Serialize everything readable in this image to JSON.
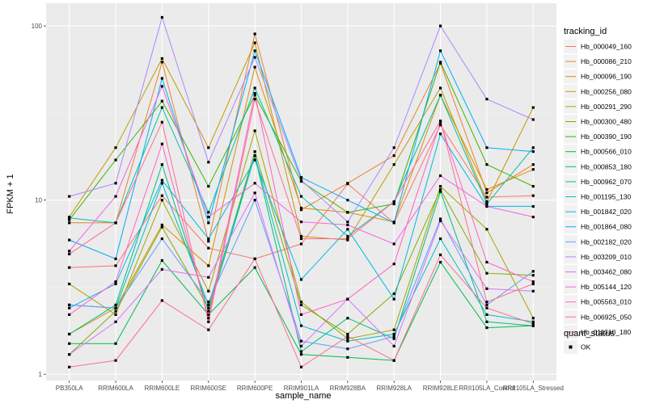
{
  "chart_data": {
    "type": "line",
    "title": "",
    "xlabel": "sample_name",
    "ylabel": "FPKM + 1",
    "yscale": "log10",
    "ylim": [
      0.92,
      135
    ],
    "yticks": [
      1,
      10,
      100
    ],
    "ytick_labels": [
      "1",
      "10",
      "100"
    ],
    "grid": true,
    "legend_position": "right",
    "categories": [
      "PB350LA",
      "RRIM600LA",
      "RRIM600LE",
      "RRIM600SE",
      "RRIM600PE",
      "RRIM901LA",
      "RRIM928BA",
      "RRIM928LA",
      "RRIM928LE",
      "RRII105LA_Control",
      "RRII105LA_Stressed"
    ],
    "legend_title": "tracking_id",
    "shape_legend_title": "quant_status",
    "shape_legend_items": [
      "OK"
    ],
    "series": [
      {
        "name": "Hb_000049_160",
        "color": "#F8766D",
        "values": [
          4.1,
          4.2,
          10.6,
          5.3,
          4.6,
          5.6,
          12.4,
          7.4,
          27.0,
          10.4,
          10.6
        ]
      },
      {
        "name": "Hb_000086_210",
        "color": "#EA8331",
        "values": [
          7.4,
          7.4,
          62.0,
          5.8,
          90.0,
          8.8,
          12.5,
          18.0,
          61.0,
          11.0,
          16.0
        ]
      },
      {
        "name": "Hb_000096_190",
        "color": "#D89000",
        "values": [
          1.7,
          2.4,
          7.2,
          4.2,
          58.0,
          9.0,
          8.5,
          7.5,
          40.0,
          11.5,
          15.0
        ]
      },
      {
        "name": "Hb_000256_080",
        "color": "#C09B00",
        "values": [
          8.0,
          20.0,
          65.0,
          20.0,
          80.0,
          6.2,
          5.9,
          16.0,
          44.0,
          9.8,
          34.0
        ]
      },
      {
        "name": "Hb_000291_290",
        "color": "#A3A500",
        "values": [
          3.3,
          2.2,
          10.0,
          3.0,
          25.0,
          2.6,
          1.6,
          1.8,
          12.0,
          6.8,
          2.1
        ]
      },
      {
        "name": "Hb_000300_480",
        "color": "#7CAE00",
        "values": [
          1.3,
          2.3,
          7.0,
          2.4,
          19.0,
          2.5,
          1.7,
          2.9,
          11.5,
          3.8,
          3.7
        ]
      },
      {
        "name": "Hb_000390_190",
        "color": "#39B600",
        "values": [
          7.7,
          17.0,
          37.0,
          12.0,
          40.0,
          12.8,
          8.5,
          9.5,
          62.0,
          16.0,
          12.0
        ]
      },
      {
        "name": "Hb_000566_010",
        "color": "#00BB4E",
        "values": [
          1.5,
          1.5,
          4.5,
          2.2,
          4.1,
          1.3,
          1.25,
          1.2,
          4.4,
          1.85,
          1.9
        ]
      },
      {
        "name": "Hb_000853_180",
        "color": "#00BF7D",
        "values": [
          1.7,
          2.5,
          16.0,
          2.3,
          18.0,
          1.35,
          2.1,
          1.6,
          11.2,
          2.0,
          1.9
        ]
      },
      {
        "name": "Hb_000962_070",
        "color": "#00C1A3",
        "values": [
          7.9,
          7.4,
          34.0,
          8.5,
          44.0,
          10.5,
          6.2,
          9.8,
          40.0,
          9.5,
          20.0
        ]
      },
      {
        "name": "Hb_001195_130",
        "color": "#00BFC4",
        "values": [
          2.5,
          2.4,
          12.5,
          2.5,
          18.0,
          1.9,
          1.55,
          1.7,
          6.0,
          2.2,
          2.0
        ]
      },
      {
        "name": "Hb_001842_020",
        "color": "#00B9E3",
        "values": [
          2.4,
          3.3,
          13.0,
          6.0,
          17.0,
          3.5,
          6.8,
          2.7,
          24.0,
          9.2,
          9.2
        ]
      },
      {
        "name": "Hb_001864_080",
        "color": "#00ADFA",
        "values": [
          5.9,
          4.6,
          50.0,
          7.4,
          72.0,
          13.5,
          10.0,
          7.4,
          72.0,
          20.0,
          19.0
        ]
      },
      {
        "name": "Hb_002182_020",
        "color": "#619CFF",
        "values": [
          2.5,
          2.4,
          6.0,
          2.6,
          10.0,
          1.55,
          1.4,
          1.65,
          7.8,
          2.5,
          3.9
        ]
      },
      {
        "name": "Hb_003209_010",
        "color": "#AE87FF",
        "values": [
          10.5,
          12.5,
          112.0,
          16.5,
          66.0,
          13.0,
          7.5,
          20.0,
          100.0,
          38.0,
          29.0
        ]
      },
      {
        "name": "Hb_003462_080",
        "color": "#DB72FB",
        "values": [
          1.3,
          2.0,
          4.0,
          3.6,
          11.0,
          1.45,
          2.7,
          1.45,
          7.6,
          3.1,
          3.0
        ]
      },
      {
        "name": "Hb_005144_120",
        "color": "#F564E3",
        "values": [
          5.1,
          10.5,
          45.0,
          8.0,
          12.5,
          7.5,
          7.2,
          5.6,
          13.8,
          9.2,
          8.0
        ]
      },
      {
        "name": "Hb_005563_010",
        "color": "#FF61C3",
        "values": [
          2.2,
          3.4,
          21.0,
          2.1,
          41.0,
          2.2,
          2.7,
          4.3,
          28.0,
          4.4,
          3.4
        ]
      },
      {
        "name": "Hb_006925_050",
        "color": "#FF6C91",
        "values": [
          4.9,
          7.4,
          28.0,
          2.0,
          38.0,
          6.0,
          6.0,
          9.8,
          28.5,
          2.6,
          3.3
        ]
      },
      {
        "name": "Hb_011310_180",
        "color": "#FF6C91",
        "values": [
          1.1,
          1.2,
          2.65,
          1.8,
          4.6,
          1.1,
          1.65,
          1.2,
          4.85,
          2.4,
          1.95
        ]
      }
    ]
  }
}
